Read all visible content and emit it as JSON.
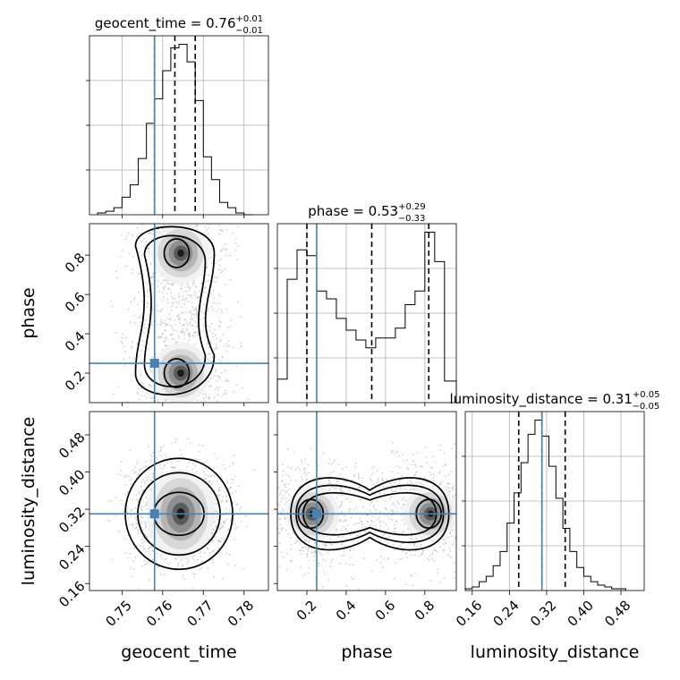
{
  "chart_data": {
    "type": "corner",
    "parameters": [
      "geocent_time",
      "phase",
      "luminosity_distance"
    ],
    "titles": {
      "geocent_time": {
        "name": "geocent_time",
        "median": "0.76",
        "plus": "+0.01",
        "minus": "−0.01"
      },
      "phase": {
        "name": "phase",
        "median": "0.53",
        "plus": "+0.29",
        "minus": "−0.33"
      },
      "luminosity_distance": {
        "name": "luminosity_distance",
        "median": "0.31",
        "plus": "+0.05",
        "minus": "−0.05"
      }
    },
    "axis_labels": {
      "x": [
        "geocent_time",
        "phase",
        "luminosity_distance"
      ],
      "y": [
        "phase",
        "luminosity_distance"
      ]
    },
    "ranges": {
      "geocent_time": [
        0.742,
        0.786
      ],
      "phase": [
        0.05,
        0.96
      ],
      "luminosity_distance": [
        0.145,
        0.53
      ]
    },
    "ticks": {
      "geocent_time": [
        "0.75",
        "0.76",
        "0.77",
        "0.78"
      ],
      "phase": [
        "0.2",
        "0.4",
        "0.6",
        "0.8"
      ],
      "luminosity_distance": [
        "0.16",
        "0.24",
        "0.32",
        "0.40",
        "0.48"
      ]
    },
    "truth": {
      "geocent_time": 0.758,
      "phase": 0.25,
      "luminosity_distance": 0.31
    },
    "quantiles": {
      "geocent_time": [
        0.758,
        0.763,
        0.768
      ],
      "phase": [
        0.2,
        0.53,
        0.82
      ],
      "luminosity_distance": [
        0.26,
        0.31,
        0.36
      ]
    },
    "histograms": {
      "geocent_time": {
        "edges": [
          0.744,
          0.746,
          0.748,
          0.75,
          0.752,
          0.754,
          0.756,
          0.758,
          0.76,
          0.762,
          0.764,
          0.766,
          0.768,
          0.77,
          0.772,
          0.774,
          0.776,
          0.778,
          0.78,
          0.782
        ],
        "counts": [
          1,
          2,
          4,
          10,
          17,
          32,
          52,
          66,
          82,
          95,
          97,
          87,
          65,
          33,
          20,
          7,
          4,
          1,
          0
        ]
      },
      "phase": {
        "edges": [
          0.05,
          0.1,
          0.15,
          0.2,
          0.25,
          0.3,
          0.35,
          0.4,
          0.45,
          0.5,
          0.55,
          0.6,
          0.65,
          0.7,
          0.75,
          0.8,
          0.85,
          0.9,
          0.96
        ],
        "counts": [
          12,
          63,
          78,
          75,
          57,
          53,
          43,
          37,
          32,
          28,
          33,
          33,
          38,
          50,
          57,
          87,
          72,
          11
        ]
      },
      "luminosity_distance": {
        "edges": [
          0.145,
          0.16,
          0.175,
          0.19,
          0.205,
          0.22,
          0.235,
          0.25,
          0.265,
          0.28,
          0.295,
          0.31,
          0.325,
          0.34,
          0.355,
          0.37,
          0.385,
          0.4,
          0.415,
          0.43,
          0.445,
          0.46,
          0.475,
          0.49
        ],
        "counts": [
          1,
          2,
          5,
          8,
          14,
          22,
          38,
          55,
          72,
          88,
          96,
          87,
          70,
          52,
          35,
          22,
          13,
          8,
          5,
          3,
          2,
          1,
          1
        ]
      }
    },
    "density_modes": [
      {
        "x": "geocent_time",
        "y": "phase",
        "points": [
          [
            0.764,
            0.81
          ],
          [
            0.764,
            0.2
          ]
        ]
      },
      {
        "x": "geocent_time",
        "y": "luminosity_distance",
        "points": [
          [
            0.764,
            0.31
          ]
        ]
      },
      {
        "x": "phase",
        "y": "luminosity_distance",
        "points": [
          [
            0.22,
            0.31
          ],
          [
            0.82,
            0.31
          ]
        ]
      }
    ]
  }
}
